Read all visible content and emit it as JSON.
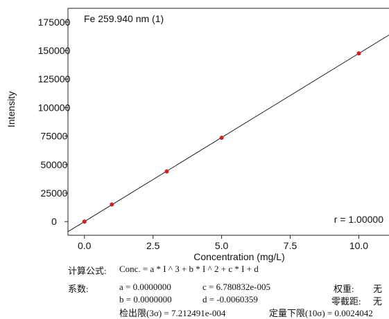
{
  "chart_data": {
    "type": "scatter",
    "title": "Fe 259.940 nm (1)",
    "xlabel": "Concentration (mg/L)",
    "ylabel": "Intensity",
    "x_ticks": [
      0.0,
      2.5,
      5.0,
      7.5,
      10.0
    ],
    "x_tick_labels": [
      "0.0",
      "2.5",
      "5.0",
      "7.5",
      "10.0"
    ],
    "y_ticks": [
      0,
      25000,
      50000,
      75000,
      100000,
      125000,
      150000,
      175000
    ],
    "y_tick_labels": [
      "0",
      "25000",
      "50000",
      "75000",
      "100000",
      "125000",
      "150000",
      "175000"
    ],
    "xlim": [
      -0.6,
      11.1
    ],
    "ylim": [
      -12000,
      187000
    ],
    "grid": false,
    "points": {
      "x": [
        0,
        1,
        3,
        5,
        10
      ],
      "y": [
        0,
        15000,
        44000,
        73500,
        147500
      ],
      "color": "#cc2222"
    },
    "fit_line": {
      "slope": 14740,
      "intercept": 0,
      "color": "#222222"
    },
    "annotation": "r = 1.00000"
  },
  "info": {
    "formula_label": "计算公式:",
    "formula": "Conc. = a * I ^ 3 + b * I ^ 2 + c * I + d",
    "coef_label": "系数:",
    "a": "a = 0.0000000",
    "c": "c = 6.780832e-005",
    "b": "b = 0.0000000",
    "d": "d = -0.0060359",
    "weight_label": "权重:",
    "weight_value": "无",
    "zero_label": "零截距:",
    "zero_value": "无",
    "lod": "检出限(3σ) = 7.212491e-004",
    "loq": "定量下限(10σ) = 0.0024042"
  }
}
